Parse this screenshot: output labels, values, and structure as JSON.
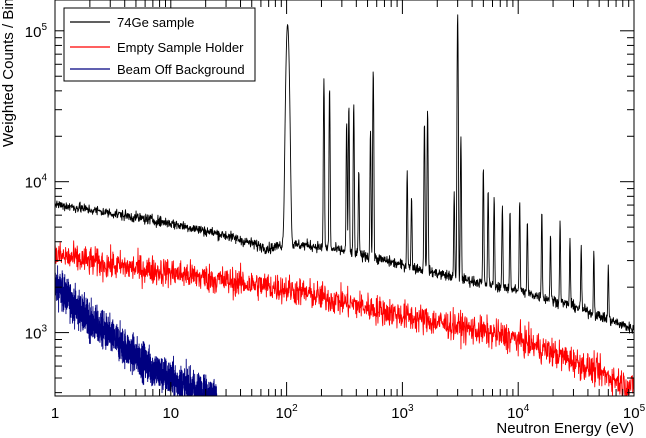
{
  "chart_data": {
    "type": "line",
    "title": "",
    "xlabel": "Neutron Energy (eV)",
    "ylabel": "Weighted Counts / Bin",
    "x_scale": "log",
    "y_scale": "log",
    "xlim": [
      1,
      100000
    ],
    "ylim": [
      380,
      160000
    ],
    "grid": false,
    "legend_position": "top-left",
    "x_ticks": [
      {
        "base": "1",
        "exp": ""
      },
      {
        "base": "10",
        "exp": ""
      },
      {
        "base": "10",
        "exp": "2"
      },
      {
        "base": "10",
        "exp": "3"
      },
      {
        "base": "10",
        "exp": "4"
      },
      {
        "base": "10",
        "exp": "5"
      }
    ],
    "y_ticks": [
      {
        "value": 1000,
        "base": "10",
        "exp": "3"
      },
      {
        "value": 10000,
        "base": "10",
        "exp": "4"
      },
      {
        "value": 100000,
        "base": "10",
        "exp": "5"
      }
    ],
    "series": [
      {
        "name": "74Ge sample",
        "color": "#000000",
        "baseline": [
          [
            1,
            7100
          ],
          [
            3,
            6200
          ],
          [
            10,
            5300
          ],
          [
            30,
            4400
          ],
          [
            70,
            3600
          ],
          [
            90,
            3800
          ],
          [
            150,
            3800
          ],
          [
            300,
            3500
          ],
          [
            600,
            3100
          ],
          [
            1000,
            2800
          ],
          [
            3000,
            2300
          ],
          [
            10000,
            1900
          ],
          [
            30000,
            1500
          ],
          [
            100000,
            1050
          ]
        ],
        "noise": 0.04,
        "peaks": [
          [
            102,
            110000
          ],
          [
            210,
            48000
          ],
          [
            235,
            42000
          ],
          [
            330,
            25000
          ],
          [
            345,
            32000
          ],
          [
            380,
            33000
          ],
          [
            420,
            12000
          ],
          [
            530,
            22000
          ],
          [
            560,
            55000
          ],
          [
            1100,
            12000
          ],
          [
            1200,
            8000
          ],
          [
            1550,
            25000
          ],
          [
            1650,
            30000
          ],
          [
            2800,
            8500
          ],
          [
            3000,
            130000
          ],
          [
            3200,
            20000
          ],
          [
            5000,
            12500
          ],
          [
            5500,
            9000
          ],
          [
            6200,
            8000
          ],
          [
            7300,
            7000
          ],
          [
            8500,
            6500
          ],
          [
            10300,
            7500
          ],
          [
            12000,
            5500
          ],
          [
            16000,
            6500
          ],
          [
            19000,
            4500
          ],
          [
            23000,
            5500
          ],
          [
            28000,
            4200
          ],
          [
            35000,
            3800
          ],
          [
            45000,
            3500
          ],
          [
            60000,
            2800
          ]
        ]
      },
      {
        "name": "Empty Sample Holder",
        "color": "#ff0000",
        "baseline": [
          [
            1,
            3250
          ],
          [
            3,
            2800
          ],
          [
            10,
            2500
          ],
          [
            30,
            2200
          ],
          [
            100,
            1950
          ],
          [
            300,
            1600
          ],
          [
            1000,
            1300
          ],
          [
            3000,
            1100
          ],
          [
            10000,
            900
          ],
          [
            30000,
            650
          ],
          [
            100000,
            430
          ]
        ],
        "noise": 0.11,
        "peaks": []
      },
      {
        "name": "Beam Off Background",
        "color": "#000080",
        "baseline": [
          [
            1,
            2100
          ],
          [
            1.5,
            1500
          ],
          [
            2,
            1200
          ],
          [
            3,
            950
          ],
          [
            5,
            700
          ],
          [
            8,
            540
          ],
          [
            12,
            460
          ],
          [
            20,
            390
          ],
          [
            25,
            370
          ]
        ],
        "noise": 0.14,
        "peaks": []
      }
    ]
  }
}
